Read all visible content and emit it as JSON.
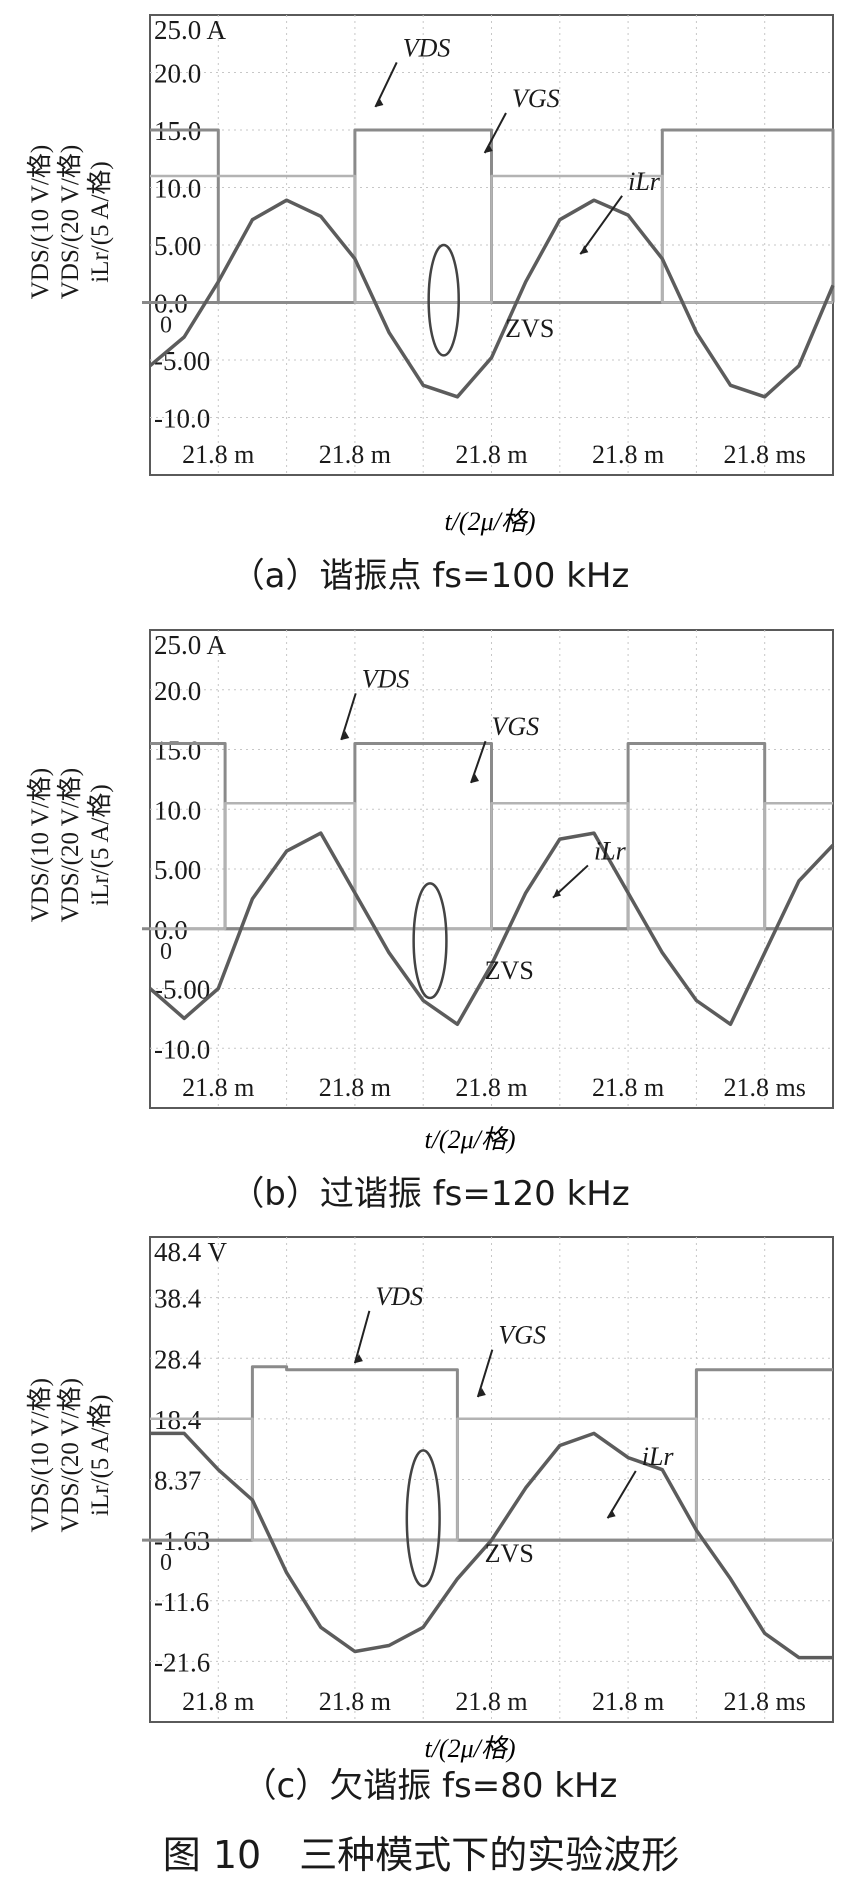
{
  "figure_caption": "图 10　三种模式下的实验波形",
  "colors": {
    "frame": "#5a5a5a",
    "grid": "#c7c7c7",
    "vds": "#8a8a8a",
    "vgs": "#b3b3b3",
    "ilr": "#5c5c5c",
    "zero_line": "#222222"
  },
  "chart_data": [
    {
      "type": "line",
      "caption": "（a）谐振点 fs=100 kHz",
      "title": "",
      "xlabel": "t/(2μ/格)",
      "ylabel": [
        "VDS/(10 V/格)",
        "VDS/(20 V/格)",
        "iLr/(5 A/格)"
      ],
      "y_tick_labels": [
        "25.0 A",
        "20.0",
        "15.0",
        "10.0",
        "5.00",
        "0.0",
        "-5.00",
        "-10.0"
      ],
      "x_tick_labels": [
        "21.8 m",
        "21.8 m",
        "21.8 m",
        "21.8 m",
        "21.8 ms"
      ],
      "zero_marker": "0",
      "x_divisions": 10,
      "y_divisions": 8,
      "annotations": [
        "ZVS"
      ],
      "series": [
        {
          "name": "VDS",
          "x": [
            0,
            0.03,
            0.05,
            0.1,
            0.15,
            0.2,
            0.25,
            0.3,
            0.35,
            0.4,
            0.45,
            0.5,
            0.55,
            0.6,
            0.65,
            0.7,
            0.75,
            0.8,
            0.85,
            0.9,
            0.95,
            1.0
          ],
          "values": [
            15.0,
            15.0,
            15.0,
            0.0,
            0.0,
            0.0,
            0.0,
            15.0,
            15.0,
            15.0,
            15.0,
            0.0,
            0.0,
            0.0,
            0.0,
            0.0,
            15.0,
            15.0,
            15.0,
            15.0,
            15.0,
            0.0
          ]
        },
        {
          "name": "VGS",
          "x": [
            0,
            0.05,
            0.1,
            0.15,
            0.2,
            0.25,
            0.3,
            0.35,
            0.4,
            0.45,
            0.5,
            0.55,
            0.6,
            0.65,
            0.7,
            0.75,
            0.8,
            0.85,
            0.9,
            0.95,
            1.0
          ],
          "values": [
            11.0,
            11.0,
            11.0,
            11.0,
            11.0,
            11.0,
            0.0,
            0.0,
            0.0,
            0.0,
            11.0,
            11.0,
            11.0,
            11.0,
            11.0,
            0.0,
            0.0,
            0.0,
            0.0,
            0.0,
            0.0
          ]
        },
        {
          "name": "iLr",
          "x": [
            0,
            0.05,
            0.1,
            0.15,
            0.2,
            0.25,
            0.3,
            0.35,
            0.4,
            0.45,
            0.5,
            0.55,
            0.6,
            0.65,
            0.7,
            0.75,
            0.8,
            0.85,
            0.9,
            0.95,
            1.0
          ],
          "values": [
            -5.5,
            -3.0,
            1.8,
            7.2,
            8.9,
            7.5,
            3.8,
            -2.6,
            -7.2,
            -8.2,
            -4.8,
            1.8,
            7.2,
            8.9,
            7.6,
            3.8,
            -2.6,
            -7.2,
            -8.2,
            -5.5,
            1.5
          ]
        }
      ]
    },
    {
      "type": "line",
      "caption": "（b）过谐振 fs=120 kHz",
      "title": "",
      "xlabel": "t/(2μ/格)",
      "ylabel": [
        "VDS/(10 V/格)",
        "VDS/(20 V/格)",
        "iLr/(5 A/格)"
      ],
      "y_tick_labels": [
        "25.0 A",
        "20.0",
        "15.0",
        "10.0",
        "5.00",
        "0.0",
        "-5.00",
        "-10.0"
      ],
      "x_tick_labels": [
        "21.8 m",
        "21.8 m",
        "21.8 m",
        "21.8 m",
        "21.8 ms"
      ],
      "zero_marker": "0",
      "x_divisions": 10,
      "y_divisions": 8,
      "annotations": [
        "ZVS"
      ],
      "series": [
        {
          "name": "VDS",
          "x": [
            0,
            0.05,
            0.11,
            0.15,
            0.2,
            0.25,
            0.3,
            0.35,
            0.4,
            0.45,
            0.5,
            0.55,
            0.6,
            0.65,
            0.7,
            0.75,
            0.8,
            0.85,
            0.9,
            0.95,
            1.0
          ],
          "values": [
            15.5,
            15.5,
            0.0,
            0.0,
            0.0,
            0.0,
            15.5,
            15.5,
            15.5,
            15.5,
            0.0,
            0.0,
            0.0,
            0.0,
            15.5,
            15.5,
            15.5,
            15.5,
            0.0,
            0.0,
            0.0
          ]
        },
        {
          "name": "VGS",
          "x": [
            0,
            0.05,
            0.11,
            0.15,
            0.2,
            0.25,
            0.3,
            0.35,
            0.4,
            0.45,
            0.5,
            0.55,
            0.6,
            0.65,
            0.7,
            0.75,
            0.8,
            0.85,
            0.9,
            0.95,
            1.0
          ],
          "values": [
            0.0,
            0.0,
            10.5,
            10.5,
            10.5,
            10.5,
            0.0,
            0.0,
            0.0,
            0.0,
            10.5,
            10.5,
            10.5,
            10.5,
            0.0,
            0.0,
            0.0,
            0.0,
            10.5,
            10.5,
            10.5
          ]
        },
        {
          "name": "iLr",
          "x": [
            0,
            0.05,
            0.1,
            0.15,
            0.2,
            0.25,
            0.3,
            0.35,
            0.4,
            0.45,
            0.5,
            0.55,
            0.6,
            0.65,
            0.7,
            0.75,
            0.8,
            0.85,
            0.9,
            0.95,
            1.0
          ],
          "values": [
            -5.0,
            -7.5,
            -5.0,
            2.5,
            6.5,
            8.0,
            3.0,
            -2.0,
            -6.0,
            -8.0,
            -3.0,
            3.0,
            7.5,
            8.0,
            3.0,
            -2.0,
            -6.0,
            -8.0,
            -2.0,
            4.0,
            7.0
          ]
        }
      ]
    },
    {
      "type": "line",
      "caption": "（c）欠谐振 fs=80 kHz",
      "title": "",
      "xlabel": "t/(2μ/格)",
      "ylabel": [
        "VDS/(10 V/格)",
        "VDS/(20 V/格)",
        "iLr/(5 A/格)"
      ],
      "y_tick_labels": [
        "48.4 V",
        "38.4",
        "28.4",
        "18.4",
        "8.37",
        "-1.63",
        "-11.6",
        "-21.6"
      ],
      "x_tick_labels": [
        "21.8 m",
        "21.8 m",
        "21.8 m",
        "21.8 m",
        "21.8 ms"
      ],
      "zero_marker": "0",
      "x_divisions": 10,
      "y_divisions": 8,
      "annotations": [
        "ZVS"
      ],
      "series": [
        {
          "name": "VDS",
          "x": [
            0,
            0.05,
            0.1,
            0.15,
            0.2,
            0.25,
            0.3,
            0.35,
            0.4,
            0.45,
            0.5,
            0.55,
            0.6,
            0.65,
            0.7,
            0.75,
            0.8,
            0.85,
            0.9,
            0.95,
            1.0
          ],
          "values": [
            -1.63,
            -1.63,
            -1.63,
            27.0,
            26.5,
            26.5,
            26.5,
            26.5,
            26.5,
            -1.63,
            -1.63,
            -1.63,
            -1.63,
            -1.63,
            -1.63,
            -1.63,
            26.5,
            26.5,
            26.5,
            26.5,
            26.5
          ]
        },
        {
          "name": "VGS",
          "x": [
            0,
            0.05,
            0.1,
            0.15,
            0.2,
            0.25,
            0.3,
            0.35,
            0.4,
            0.45,
            0.5,
            0.55,
            0.6,
            0.65,
            0.7,
            0.75,
            0.8,
            0.85,
            0.9,
            0.95,
            1.0
          ],
          "values": [
            18.4,
            18.4,
            18.4,
            -1.63,
            -1.63,
            -1.63,
            -1.63,
            -1.63,
            -1.63,
            18.4,
            18.4,
            18.4,
            18.4,
            18.4,
            18.4,
            18.4,
            -1.63,
            -1.63,
            -1.63,
            -1.63,
            -1.63
          ]
        },
        {
          "name": "iLr",
          "x": [
            0,
            0.05,
            0.1,
            0.15,
            0.2,
            0.25,
            0.3,
            0.35,
            0.4,
            0.45,
            0.5,
            0.55,
            0.6,
            0.65,
            0.7,
            0.75,
            0.8,
            0.85,
            0.9,
            0.95,
            1.0
          ],
          "values": [
            16.0,
            16.0,
            10.0,
            5.0,
            -7.0,
            -16.0,
            -20.0,
            -19.0,
            -16.0,
            -8.0,
            -1.63,
            7.0,
            14.0,
            16.0,
            12.0,
            10.0,
            0.0,
            -8.0,
            -17.0,
            -21.0,
            -21.0
          ]
        }
      ]
    }
  ]
}
